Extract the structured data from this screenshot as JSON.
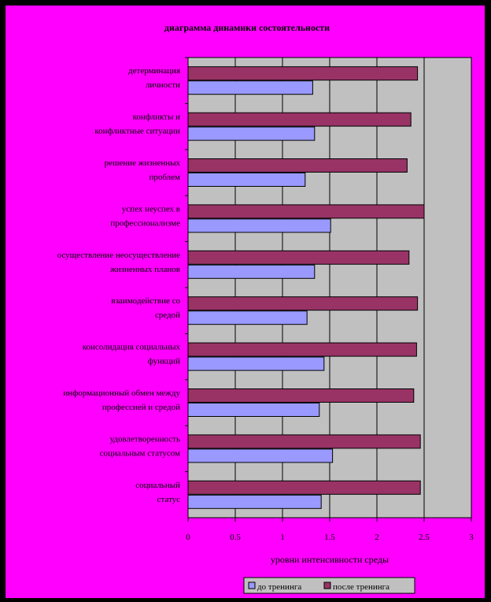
{
  "chart_data": {
    "type": "bar",
    "orientation": "horizontal",
    "title": "диаграмма динамики состоятельности",
    "xlabel": "уровни интенсивности среды",
    "xlim": [
      0,
      3
    ],
    "xticks": [
      "0",
      "0.5",
      "1",
      "1.5",
      "2",
      "2.5",
      "3"
    ],
    "grid": true,
    "legend_position": "bottom",
    "categories": [
      [
        "детерминация",
        "личности"
      ],
      [
        "конфликты и",
        "конфликтные ситуации"
      ],
      [
        "решение жизненных",
        "проблем"
      ],
      [
        "успех неуспех в",
        "профессионализме"
      ],
      [
        "осуществление неосуществление",
        "жизненных планов"
      ],
      [
        "взаимодействие со",
        "средой"
      ],
      [
        "консолидация социальных",
        "функций"
      ],
      [
        "информационный обмен между",
        "профессией и средой"
      ],
      [
        "удовлетворенность",
        "социальным статусом"
      ],
      [
        "социальный",
        "статус"
      ]
    ],
    "series": [
      {
        "name": "после тренинга",
        "color": "#993366",
        "values": [
          2.43,
          2.36,
          2.32,
          2.5,
          2.34,
          2.43,
          2.42,
          2.39,
          2.46,
          2.46
        ]
      },
      {
        "name": "до тренинга",
        "color": "#9999ff",
        "values": [
          1.32,
          1.34,
          1.24,
          1.51,
          1.34,
          1.26,
          1.44,
          1.39,
          1.53,
          1.41
        ]
      }
    ],
    "colors": {
      "background": "#ff00ff",
      "plot_area": "#c0c0c0",
      "gridline": "#000000"
    }
  }
}
